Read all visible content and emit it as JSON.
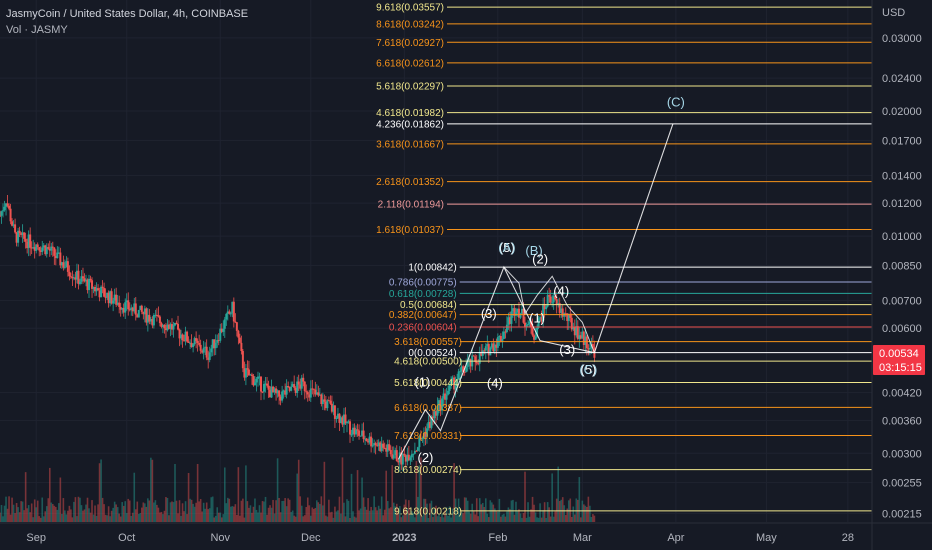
{
  "header": {
    "symbol": "JasmyCoin / United States Dollar, 4h, COINBASE",
    "volume_label": "Vol · JASMY"
  },
  "price_axis": {
    "currency": "USD",
    "ticks": [
      "0.03000",
      "0.02400",
      "0.02000",
      "0.01700",
      "0.01400",
      "0.01200",
      "0.01000",
      "0.00850",
      "0.00700",
      "0.00600",
      "0.00420",
      "0.00360",
      "0.00300",
      "0.00255",
      "0.00215"
    ],
    "last_price": "0.00534",
    "countdown": "03:15:15"
  },
  "time_axis": {
    "labels": [
      "Sep",
      "Oct",
      "Nov",
      "Dec",
      "2023",
      "Feb",
      "Mar",
      "Apr",
      "May",
      "28"
    ]
  },
  "colors": {
    "background": "#161a25",
    "up": "#26a69a",
    "down": "#ef5350",
    "fib_orange": "#f7931a",
    "fib_yellow": "#f0e68c",
    "wave_label": "#ffffff",
    "wave_label_cyan": "#a5d6e7",
    "price_tag": "#f23645"
  },
  "chart_data": {
    "type": "candlestick",
    "title": "JasmyCoin / United States Dollar, 4h, COINBASE",
    "y_scale": "log",
    "ylim": [
      0.00205,
      0.037
    ],
    "x_range": [
      "2022-08-20",
      "2023-06-05"
    ],
    "x_labels": [
      "Sep",
      "Oct",
      "Nov",
      "Dec",
      "2023",
      "Feb",
      "Mar",
      "Apr",
      "May",
      "28"
    ],
    "price_path": [
      {
        "x": "2022-08-20",
        "y": 0.0112
      },
      {
        "x": "2022-08-22",
        "y": 0.0123
      },
      {
        "x": "2022-08-25",
        "y": 0.01
      },
      {
        "x": "2022-09-05",
        "y": 0.0093
      },
      {
        "x": "2022-09-15",
        "y": 0.0079
      },
      {
        "x": "2022-09-30",
        "y": 0.0068
      },
      {
        "x": "2022-10-15",
        "y": 0.0061
      },
      {
        "x": "2022-10-28",
        "y": 0.0052
      },
      {
        "x": "2022-11-05",
        "y": 0.0067
      },
      {
        "x": "2022-11-09",
        "y": 0.0047
      },
      {
        "x": "2022-11-20",
        "y": 0.0041
      },
      {
        "x": "2022-11-28",
        "y": 0.0044
      },
      {
        "x": "2022-12-07",
        "y": 0.0039
      },
      {
        "x": "2022-12-15",
        "y": 0.0034
      },
      {
        "x": "2022-12-25",
        "y": 0.0031
      },
      {
        "x": "2022-12-31",
        "y": 0.0029
      },
      {
        "x": "2023-01-05",
        "y": 0.0031
      },
      {
        "x": "2023-01-10",
        "y": 0.0036
      },
      {
        "x": "2023-01-15",
        "y": 0.0042
      },
      {
        "x": "2023-01-21",
        "y": 0.0048
      },
      {
        "x": "2023-01-27",
        "y": 0.0052
      },
      {
        "x": "2023-02-02",
        "y": 0.0057
      },
      {
        "x": "2023-02-07",
        "y": 0.0068
      },
      {
        "x": "2023-02-13",
        "y": 0.0058
      },
      {
        "x": "2023-02-18",
        "y": 0.0072
      },
      {
        "x": "2023-02-22",
        "y": 0.0066
      },
      {
        "x": "2023-02-28",
        "y": 0.0058
      },
      {
        "x": "2023-03-05",
        "y": 0.0053
      }
    ],
    "fib_upper": [
      {
        "label": "9.618(0.03557)",
        "value": 0.03557,
        "color": "#f0e68c"
      },
      {
        "label": "8.618(0.03242)",
        "value": 0.03242,
        "color": "#f7931a"
      },
      {
        "label": "7.618(0.02927)",
        "value": 0.02927,
        "color": "#f7931a"
      },
      {
        "label": "6.618(0.02612)",
        "value": 0.02612,
        "color": "#f7931a"
      },
      {
        "label": "5.618(0.02297)",
        "value": 0.02297,
        "color": "#f0e68c"
      },
      {
        "label": "4.618(0.01982)",
        "value": 0.01982,
        "color": "#f0e68c"
      },
      {
        "label": "4.236(0.01862)",
        "value": 0.01862,
        "color": "#ffffff"
      },
      {
        "label": "3.618(0.01667)",
        "value": 0.01667,
        "color": "#f7931a"
      },
      {
        "label": "2.618(0.01352)",
        "value": 0.01352,
        "color": "#f7931a"
      },
      {
        "label": "2.118(0.01194)",
        "value": 0.01194,
        "color": "#ef9a9a"
      },
      {
        "label": "1.618(0.01037)",
        "value": 0.01037,
        "color": "#f7931a"
      },
      {
        "label": "1(0.00842)",
        "value": 0.00842,
        "color": "#ffffff"
      },
      {
        "label": "0.786(0.00775)",
        "value": 0.00775,
        "color": "#9fa8da"
      },
      {
        "label": "0.618(0.00728)",
        "value": 0.00728,
        "color": "#26a69a"
      },
      {
        "label": "0.5(0.00684)",
        "value": 0.00684,
        "color": "#f0e68c"
      },
      {
        "label": "0.382(0.00647)",
        "value": 0.00647,
        "color": "#f7931a"
      },
      {
        "label": "0.236(0.00604)",
        "value": 0.00604,
        "color": "#ef5350"
      },
      {
        "label": "0(0.00524)",
        "value": 0.00524,
        "color": "#ffffff"
      }
    ],
    "fib_lower": [
      {
        "label": "3.618(0.00557)",
        "value": 0.00557,
        "color": "#f7931a"
      },
      {
        "label": "4.618(0.00500)",
        "value": 0.005,
        "color": "#f0e68c"
      },
      {
        "label": "5.618(0.00444)",
        "value": 0.00444,
        "color": "#f0e68c"
      },
      {
        "label": "6.618(0.00387)",
        "value": 0.00387,
        "color": "#f7931a"
      },
      {
        "label": "7.618(0.00331)",
        "value": 0.00331,
        "color": "#f7931a"
      },
      {
        "label": "8.618(0.00274)",
        "value": 0.00274,
        "color": "#f0e68c"
      },
      {
        "label": "9.618(0.00218)",
        "value": 0.00218,
        "color": "#f0e68c"
      }
    ],
    "wave_path": [
      {
        "x": "2022-12-30",
        "y": 0.0029
      },
      {
        "x": "2023-01-08",
        "y": 0.00382
      },
      {
        "x": "2023-01-13",
        "y": 0.0034
      },
      {
        "x": "2023-02-03",
        "y": 0.00842
      },
      {
        "x": "2023-02-15",
        "y": 0.0056
      },
      {
        "x": "2023-03-05",
        "y": 0.00524
      },
      {
        "x": "2023-03-31",
        "y": 0.01862
      }
    ],
    "correction_path": [
      {
        "x": "2023-02-03",
        "y": 0.00842
      },
      {
        "x": "2023-02-08",
        "y": 0.0077
      },
      {
        "x": "2023-02-10",
        "y": 0.0065
      },
      {
        "x": "2023-02-14",
        "y": 0.0072
      },
      {
        "x": "2023-02-19",
        "y": 0.008
      },
      {
        "x": "2023-02-24",
        "y": 0.0068
      },
      {
        "x": "2023-03-01",
        "y": 0.0062
      },
      {
        "x": "2023-03-05",
        "y": 0.00524
      }
    ],
    "wave_labels": [
      {
        "text": "(1)",
        "x": "2023-01-07",
        "y": 0.00435,
        "color": "#ffffff"
      },
      {
        "text": "(2)",
        "x": "2023-01-08",
        "y": 0.00286,
        "color": "#ffffff"
      },
      {
        "text": "(3)",
        "x": "2023-01-29",
        "y": 0.00635,
        "color": "#ffffff"
      },
      {
        "text": "(4)",
        "x": "2023-01-31",
        "y": 0.00432,
        "color": "#ffffff"
      },
      {
        "text": "(5)",
        "x": "2023-02-04",
        "y": 0.00915,
        "color": "#ffffff"
      },
      {
        "text": "(A)",
        "x": "2023-02-04",
        "y": 0.00915,
        "color": "#a5d6e7"
      },
      {
        "text": "(B)",
        "x": "2023-02-13",
        "y": 0.009,
        "color": "#a5d6e7"
      },
      {
        "text": "(2)",
        "x": "2023-02-15",
        "y": 0.0086,
        "color": "#ffffff"
      },
      {
        "text": "(1)",
        "x": "2023-02-14",
        "y": 0.0062,
        "color": "#ffffff"
      },
      {
        "text": "(4)",
        "x": "2023-02-22",
        "y": 0.0072,
        "color": "#ffffff"
      },
      {
        "text": "(3)",
        "x": "2023-02-24",
        "y": 0.0052,
        "color": "#ffffff"
      },
      {
        "text": "(5)",
        "x": "2023-03-03",
        "y": 0.00465,
        "color": "#ffffff"
      },
      {
        "text": "(C)",
        "x": "2023-03-03",
        "y": 0.00465,
        "color": "#a5d6e7"
      },
      {
        "text": "(C)",
        "x": "2023-04-01",
        "y": 0.0205,
        "color": "#a5d6e7"
      }
    ]
  }
}
